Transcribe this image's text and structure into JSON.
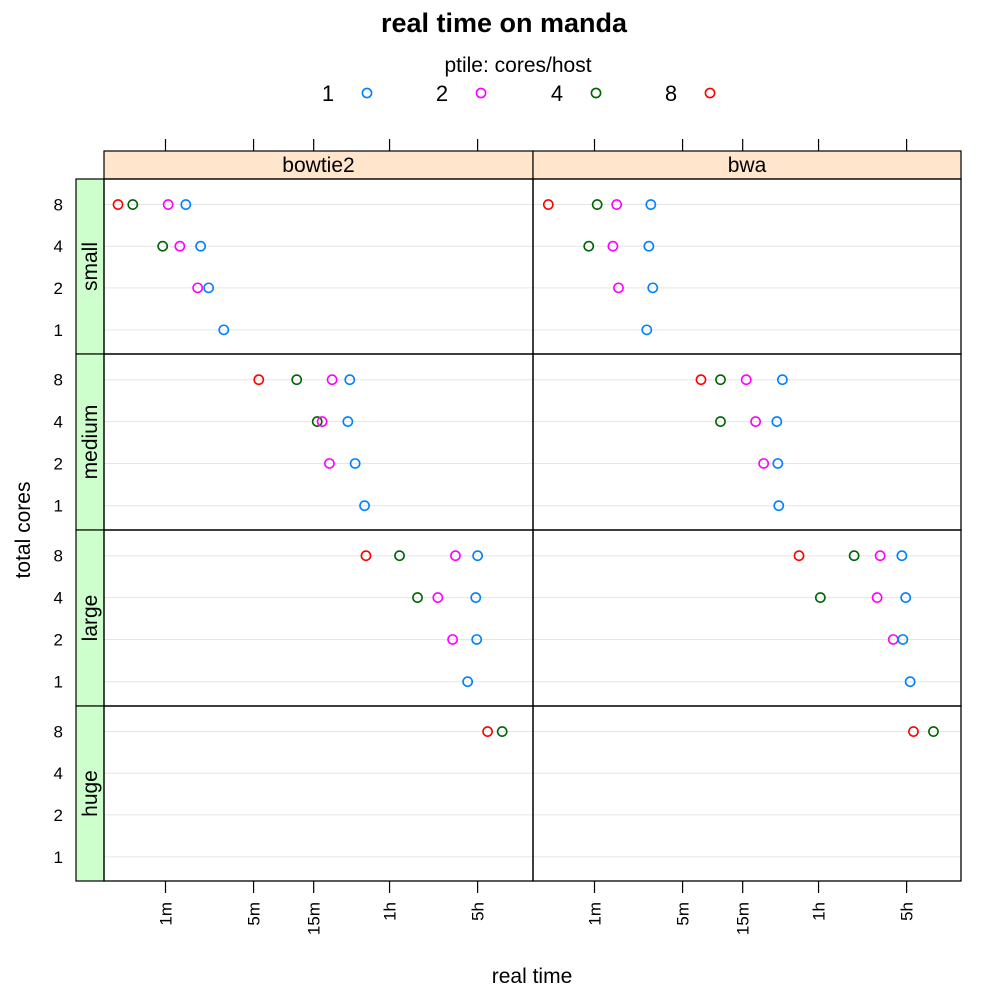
{
  "title": "real time on manda",
  "legend_title": "ptile: cores/host",
  "colors": {
    "1": "#0080ff",
    "2": "#ff00ff",
    "4": "#006400",
    "8": "#ff0000"
  },
  "chart_data": {
    "type": "scatter",
    "title": "real time on manda",
    "xlabel": "real time",
    "ylabel": "total cores",
    "x_scale": "log",
    "x_unit": "minutes",
    "x_ticks": [
      {
        "label": "1m",
        "minutes": 1
      },
      {
        "label": "5m",
        "minutes": 5
      },
      {
        "label": "15m",
        "minutes": 15
      },
      {
        "label": "1h",
        "minutes": 60
      },
      {
        "label": "5h",
        "minutes": 300
      }
    ],
    "y_ticks": [
      "1",
      "2",
      "4",
      "8"
    ],
    "legend": {
      "title": "ptile: cores/host",
      "entries": [
        "1",
        "2",
        "4",
        "8"
      ],
      "position": "top"
    },
    "columns": [
      "bowtie2",
      "bwa"
    ],
    "rows": [
      "small",
      "medium",
      "large",
      "huge"
    ],
    "panels": [
      {
        "column": "bowtie2",
        "row": "small",
        "points": [
          {
            "cores": "8",
            "ptile": "8",
            "minutes": 0.42
          },
          {
            "cores": "8",
            "ptile": "4",
            "minutes": 0.55
          },
          {
            "cores": "8",
            "ptile": "2",
            "minutes": 1.05
          },
          {
            "cores": "8",
            "ptile": "1",
            "minutes": 1.45
          },
          {
            "cores": "4",
            "ptile": "4",
            "minutes": 0.95
          },
          {
            "cores": "4",
            "ptile": "2",
            "minutes": 1.3
          },
          {
            "cores": "4",
            "ptile": "1",
            "minutes": 1.9
          },
          {
            "cores": "2",
            "ptile": "2",
            "minutes": 1.8
          },
          {
            "cores": "2",
            "ptile": "1",
            "minutes": 2.2
          },
          {
            "cores": "1",
            "ptile": "1",
            "minutes": 2.9
          }
        ]
      },
      {
        "column": "bwa",
        "row": "small",
        "points": [
          {
            "cores": "8",
            "ptile": "8",
            "minutes": 0.43
          },
          {
            "cores": "8",
            "ptile": "4",
            "minutes": 1.05
          },
          {
            "cores": "8",
            "ptile": "2",
            "minutes": 1.5
          },
          {
            "cores": "8",
            "ptile": "1",
            "minutes": 2.8
          },
          {
            "cores": "4",
            "ptile": "4",
            "minutes": 0.9
          },
          {
            "cores": "4",
            "ptile": "2",
            "minutes": 1.4
          },
          {
            "cores": "4",
            "ptile": "1",
            "minutes": 2.7
          },
          {
            "cores": "2",
            "ptile": "2",
            "minutes": 1.55
          },
          {
            "cores": "2",
            "ptile": "1",
            "minutes": 2.9
          },
          {
            "cores": "1",
            "ptile": "1",
            "minutes": 2.6
          }
        ]
      },
      {
        "column": "bowtie2",
        "row": "medium",
        "points": [
          {
            "cores": "8",
            "ptile": "8",
            "minutes": 5.5
          },
          {
            "cores": "8",
            "ptile": "4",
            "minutes": 11
          },
          {
            "cores": "8",
            "ptile": "2",
            "minutes": 21
          },
          {
            "cores": "8",
            "ptile": "1",
            "minutes": 29
          },
          {
            "cores": "4",
            "ptile": "4",
            "minutes": 16
          },
          {
            "cores": "4",
            "ptile": "2",
            "minutes": 17.5
          },
          {
            "cores": "4",
            "ptile": "1",
            "minutes": 28
          },
          {
            "cores": "2",
            "ptile": "2",
            "minutes": 20
          },
          {
            "cores": "2",
            "ptile": "1",
            "minutes": 32
          },
          {
            "cores": "1",
            "ptile": "1",
            "minutes": 38
          }
        ]
      },
      {
        "column": "bwa",
        "row": "medium",
        "points": [
          {
            "cores": "8",
            "ptile": "8",
            "minutes": 7
          },
          {
            "cores": "8",
            "ptile": "4",
            "minutes": 10
          },
          {
            "cores": "8",
            "ptile": "2",
            "minutes": 16
          },
          {
            "cores": "8",
            "ptile": "1",
            "minutes": 31
          },
          {
            "cores": "4",
            "ptile": "4",
            "minutes": 10
          },
          {
            "cores": "4",
            "ptile": "2",
            "minutes": 19
          },
          {
            "cores": "4",
            "ptile": "1",
            "minutes": 28
          },
          {
            "cores": "2",
            "ptile": "2",
            "minutes": 22
          },
          {
            "cores": "2",
            "ptile": "1",
            "minutes": 28.5
          },
          {
            "cores": "1",
            "ptile": "1",
            "minutes": 29
          }
        ]
      },
      {
        "column": "bowtie2",
        "row": "large",
        "points": [
          {
            "cores": "8",
            "ptile": "8",
            "minutes": 39
          },
          {
            "cores": "8",
            "ptile": "4",
            "minutes": 72
          },
          {
            "cores": "8",
            "ptile": "2",
            "minutes": 200
          },
          {
            "cores": "8",
            "ptile": "1",
            "minutes": 300
          },
          {
            "cores": "4",
            "ptile": "4",
            "minutes": 100
          },
          {
            "cores": "4",
            "ptile": "2",
            "minutes": 145
          },
          {
            "cores": "4",
            "ptile": "1",
            "minutes": 290
          },
          {
            "cores": "2",
            "ptile": "2",
            "minutes": 190
          },
          {
            "cores": "2",
            "ptile": "1",
            "minutes": 295
          },
          {
            "cores": "1",
            "ptile": "1",
            "minutes": 250
          }
        ]
      },
      {
        "column": "bwa",
        "row": "large",
        "points": [
          {
            "cores": "8",
            "ptile": "8",
            "minutes": 42
          },
          {
            "cores": "8",
            "ptile": "4",
            "minutes": 115
          },
          {
            "cores": "8",
            "ptile": "2",
            "minutes": 185
          },
          {
            "cores": "8",
            "ptile": "1",
            "minutes": 275
          },
          {
            "cores": "4",
            "ptile": "4",
            "minutes": 62
          },
          {
            "cores": "4",
            "ptile": "2",
            "minutes": 175
          },
          {
            "cores": "4",
            "ptile": "1",
            "minutes": 295
          },
          {
            "cores": "2",
            "ptile": "2",
            "minutes": 235
          },
          {
            "cores": "2",
            "ptile": "1",
            "minutes": 280
          },
          {
            "cores": "1",
            "ptile": "1",
            "minutes": 320
          }
        ]
      },
      {
        "column": "bowtie2",
        "row": "huge",
        "points": [
          {
            "cores": "8",
            "ptile": "8",
            "minutes": 360
          },
          {
            "cores": "8",
            "ptile": "4",
            "minutes": 470
          }
        ]
      },
      {
        "column": "bwa",
        "row": "huge",
        "points": [
          {
            "cores": "8",
            "ptile": "8",
            "minutes": 340
          },
          {
            "cores": "8",
            "ptile": "4",
            "minutes": 490
          }
        ]
      }
    ]
  }
}
